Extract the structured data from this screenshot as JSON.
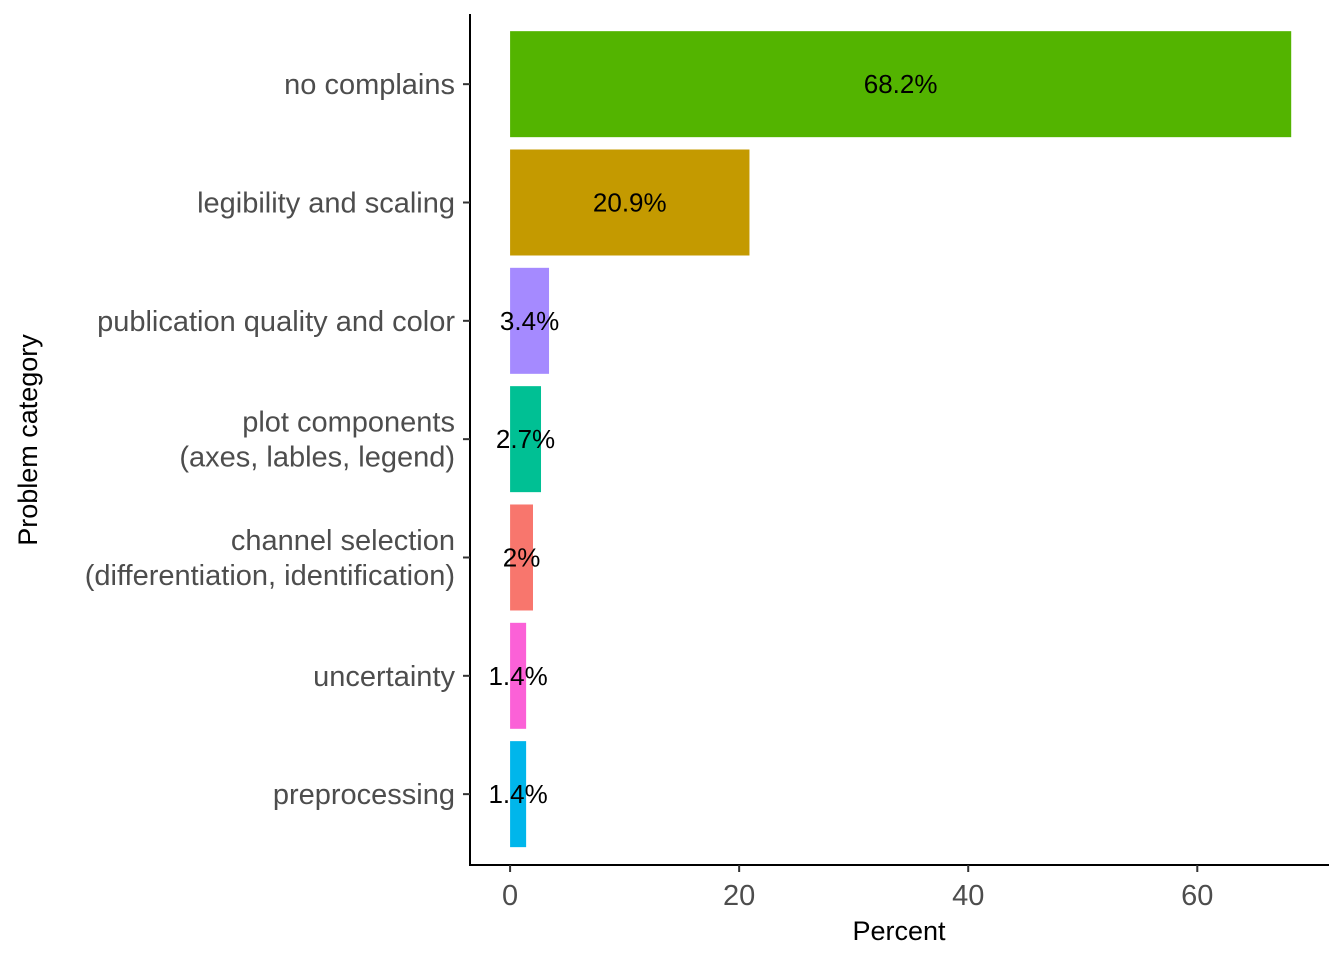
{
  "chart_data": {
    "type": "bar",
    "orientation": "horizontal",
    "xlabel": "Percent",
    "ylabel": "Problem category",
    "xlim": [
      -3.5,
      71.5
    ],
    "x_ticks": [
      "0",
      "20",
      "40",
      "60"
    ],
    "grid": false,
    "legend": "none",
    "categories": [
      {
        "label": [
          "no complains"
        ],
        "value": 68.2,
        "label_text": "68.2%",
        "color": "#53B400"
      },
      {
        "label": [
          "legibility and scaling"
        ],
        "value": 20.9,
        "label_text": "20.9%",
        "color": "#C49A00"
      },
      {
        "label": [
          "publication quality and color"
        ],
        "value": 3.4,
        "label_text": "3.4%",
        "color": "#A58AFF"
      },
      {
        "label": [
          "plot components",
          "(axes, lables, legend)"
        ],
        "value": 2.7,
        "label_text": "2.7%",
        "color": "#00C094"
      },
      {
        "label": [
          "channel selection",
          "(differentiation, identification)"
        ],
        "value": 2.0,
        "label_text": "2%",
        "color": "#F8766D"
      },
      {
        "label": [
          "uncertainty"
        ],
        "value": 1.4,
        "label_text": "1.4%",
        "color": "#FB61D7"
      },
      {
        "label": [
          "preprocessing"
        ],
        "value": 1.4,
        "label_text": "1.4%",
        "color": "#00B6EB"
      }
    ]
  }
}
